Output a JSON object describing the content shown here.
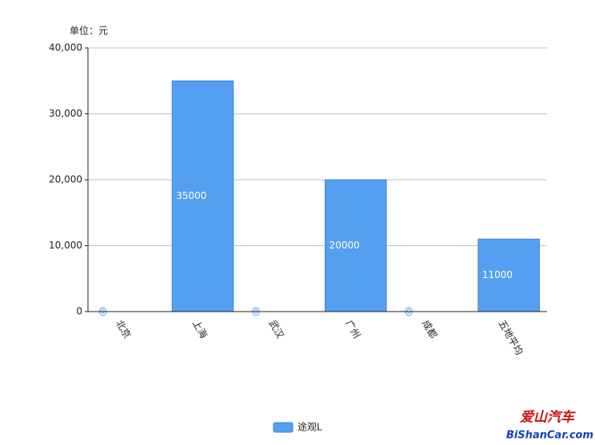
{
  "chart_data": {
    "type": "bar",
    "y_unit_label": "单位：元",
    "categories": [
      "北京",
      "上海",
      "武汉",
      "广州",
      "成都",
      "五地平均"
    ],
    "series": [
      {
        "name": "途观L",
        "color": "#559ff0",
        "values": [
          0,
          35000,
          0,
          20000,
          0,
          11000
        ]
      }
    ],
    "ylim": [
      0,
      40000
    ],
    "yticks": [
      0,
      {
        "value": 10000,
        "label": "10,000"
      },
      {
        "value": 20000,
        "label": "20,000"
      },
      {
        "value": 30000,
        "label": "30,000"
      },
      {
        "value": 40000,
        "label": "40,000"
      }
    ],
    "grid": true,
    "legend": "bottom",
    "watermark": {
      "title": "爱山汽车",
      "site": "BiShanCar.com"
    }
  }
}
